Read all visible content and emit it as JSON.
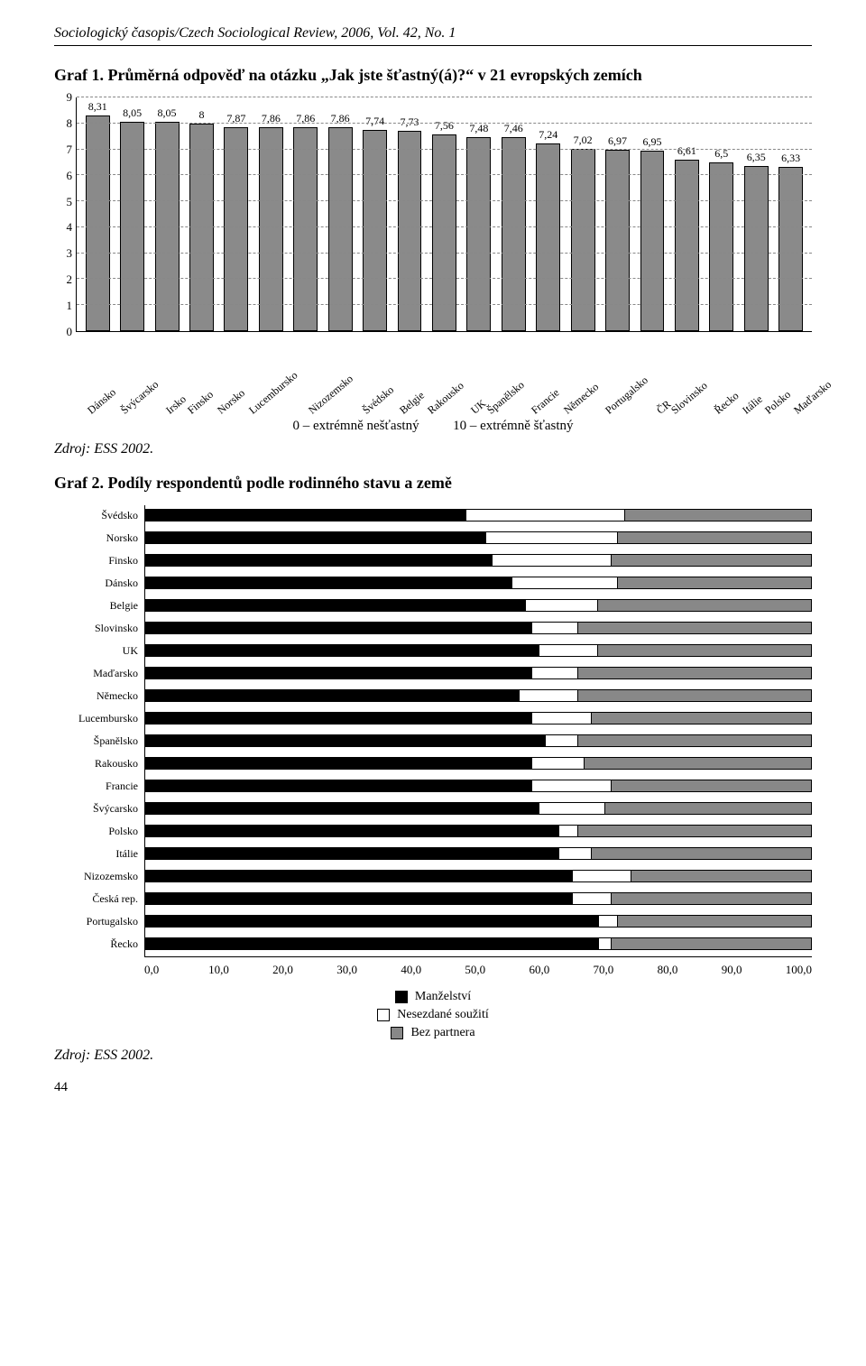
{
  "journal_header": "Sociologický časopis/Czech Sociological Review, 2006, Vol. 42, No. 1",
  "graf1": {
    "title": "Graf 1. Průměrná odpověď na otázku „Jak jste šťastný(á)?“ v 21 evropských zemích",
    "type": "bar",
    "ylim": [
      0,
      9
    ],
    "ytick_step": 1,
    "bar_color": "#8a8a8a",
    "bar_border": "#000000",
    "grid_color": "#888888",
    "grid_dash": true,
    "value_fontsize": 12,
    "axis_fontsize": 13,
    "categories": [
      "Dánsko",
      "Švýcarsko",
      "Irsko",
      "Finsko",
      "Norsko",
      "Lucembursko",
      "Nizozemsko",
      "Švédsko",
      "Belgie",
      "Rakousko",
      "UK",
      "Španělsko",
      "Francie",
      "Německo",
      "Portugalsko",
      "ČR",
      "Slovinsko",
      "Řecko",
      "Itálie",
      "Polsko",
      "Maďarsko"
    ],
    "values": [
      8.31,
      8.05,
      8.05,
      8,
      7.87,
      7.86,
      7.86,
      7.86,
      7.74,
      7.73,
      7.56,
      7.48,
      7.46,
      7.24,
      7.02,
      6.97,
      6.95,
      6.61,
      6.5,
      6.35,
      6.33
    ],
    "value_labels": [
      "8,31",
      "8,05",
      "8,05",
      "8",
      "7,87",
      "7,86",
      "7,86",
      "7,86",
      "7,74",
      "7,73",
      "7,56",
      "7,48",
      "7,46",
      "7,24",
      "7,02",
      "6,97",
      "6,95",
      "6,61",
      "6,5",
      "6,35",
      "6,33"
    ],
    "legend_left": "0 – extrémně nešťastný",
    "legend_right": "10 – extrémně šťastný"
  },
  "zdroj": "Zdroj: ESS 2002.",
  "graf2": {
    "title": "Graf 2. Podíly respondentů podle rodinného stavu a země",
    "type": "stacked-bar-horizontal",
    "xlim": [
      0,
      100
    ],
    "xtick_step": 10,
    "xtick_labels": [
      "0,0",
      "10,0",
      "20,0",
      "30,0",
      "40,0",
      "50,0",
      "60,0",
      "70,0",
      "80,0",
      "90,0",
      "100,0"
    ],
    "series_labels": [
      "Manželství",
      "Nesezdané soužití",
      "Bez partnera"
    ],
    "series_colors": [
      "#000000",
      "#ffffff",
      "#888888"
    ],
    "countries": [
      "Švédsko",
      "Norsko",
      "Finsko",
      "Dánsko",
      "Belgie",
      "Slovinsko",
      "UK",
      "Maďarsko",
      "Německo",
      "Lucembursko",
      "Španělsko",
      "Rakousko",
      "Francie",
      "Švýcarsko",
      "Polsko",
      "Itálie",
      "Nizozemsko",
      "Česká rep.",
      "Portugalsko",
      "Řecko"
    ],
    "data": [
      [
        48,
        24,
        28
      ],
      [
        51,
        20,
        29
      ],
      [
        52,
        18,
        30
      ],
      [
        55,
        16,
        29
      ],
      [
        57,
        11,
        32
      ],
      [
        58,
        7,
        35
      ],
      [
        59,
        9,
        32
      ],
      [
        58,
        7,
        35
      ],
      [
        56,
        9,
        35
      ],
      [
        58,
        9,
        33
      ],
      [
        60,
        5,
        35
      ],
      [
        58,
        8,
        34
      ],
      [
        58,
        12,
        30
      ],
      [
        59,
        10,
        31
      ],
      [
        62,
        3,
        35
      ],
      [
        62,
        5,
        33
      ],
      [
        64,
        9,
        27
      ],
      [
        64,
        6,
        30
      ],
      [
        68,
        3,
        29
      ],
      [
        68,
        2,
        30
      ]
    ],
    "label_fontsize": 12,
    "axis_fontsize": 13
  },
  "page_number": "44"
}
